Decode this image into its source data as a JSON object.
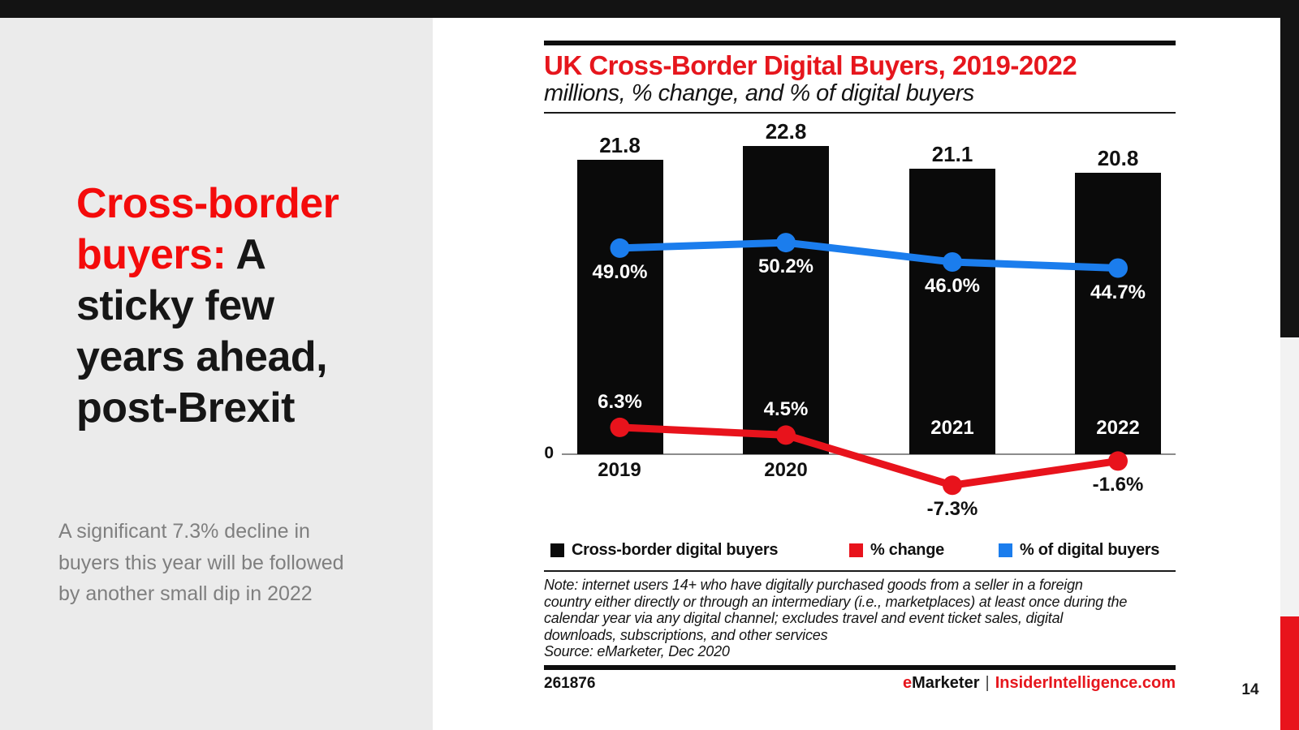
{
  "slide": {
    "title_lines": [
      {
        "red": "Cross-border"
      },
      {
        "red": "buyers:",
        "black": " A"
      },
      {
        "black": "sticky few"
      },
      {
        "black": "years ahead,"
      },
      {
        "black": "post-Brexit"
      }
    ],
    "subtitle_lines": [
      "A significant 7.3% decline in",
      "buyers this year will be followed",
      "by another small dip in 2022"
    ],
    "page_number": "14"
  },
  "chart": {
    "axis_zero_label": "0",
    "note_lines": [
      "Note: internet users 14+ who have digitally purchased goods from a seller in a foreign",
      "country either directly or through an intermediary (i.e., marketplaces) at least once during the",
      "calendar year via any digital channel; excludes travel and event ticket sales, digital",
      "downloads, subscriptions, and other services"
    ],
    "source_line": "Source: eMarketer, Dec 2020",
    "footer": {
      "id": "261876",
      "brand_e": "e",
      "brand_rest": "Marketer",
      "separator": "|",
      "site": "InsiderIntelligence.com"
    }
  },
  "chart_data": {
    "type": "bar",
    "combo": "bar with two overlaid line series (dual scale)",
    "title": "UK Cross-Border Digital Buyers, 2019-2022",
    "subtitle": "millions, % change, and % of digital buyers",
    "categories": [
      "2019",
      "2020",
      "2021",
      "2022"
    ],
    "series": [
      {
        "name": "Cross-border digital buyers",
        "type": "bar",
        "unit": "millions",
        "values": [
          21.8,
          22.8,
          21.1,
          20.8
        ],
        "labels": [
          "21.8",
          "22.8",
          "21.1",
          "20.8"
        ],
        "color": "#0a0a0a"
      },
      {
        "name": "% change",
        "type": "line",
        "unit": "%",
        "values": [
          6.3,
          4.5,
          -7.3,
          -1.6
        ],
        "labels": [
          "6.3%",
          "4.5%",
          "-7.3%",
          "-1.6%"
        ],
        "color": "#e8131c"
      },
      {
        "name": "% of digital buyers",
        "type": "line",
        "unit": "%",
        "values": [
          49.0,
          50.2,
          46.0,
          44.7
        ],
        "labels": [
          "49.0%",
          "50.2%",
          "46.0%",
          "44.7%"
        ],
        "color": "#1b7ded"
      }
    ],
    "axis": {
      "zero_label": "0",
      "gridlines": false
    },
    "legend_position": "bottom"
  }
}
